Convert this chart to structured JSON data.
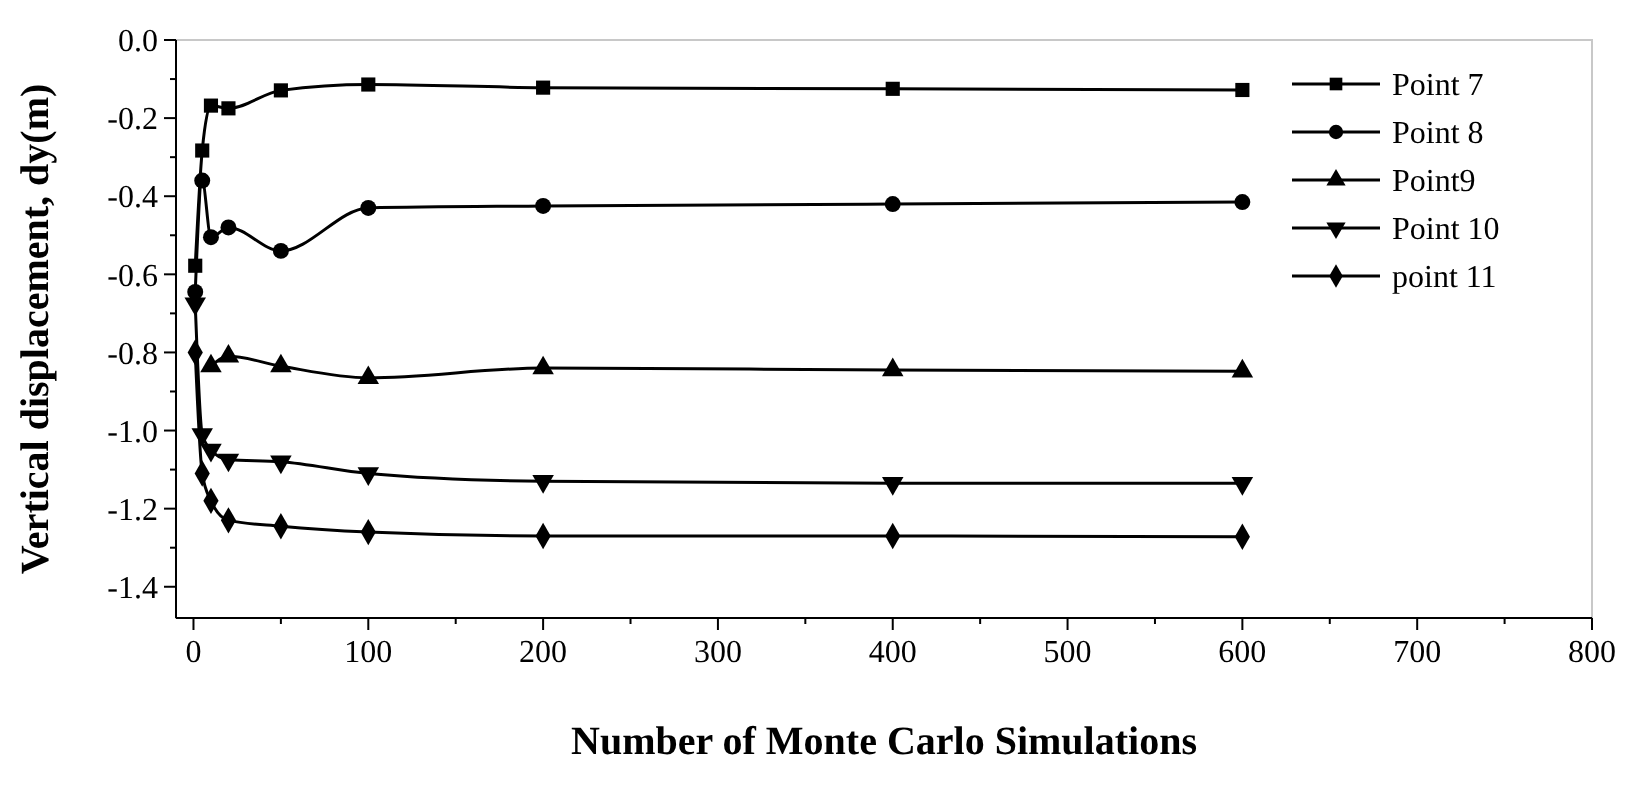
{
  "chart_data": {
    "type": "line",
    "xlabel": "Number of Monte Carlo Simulations",
    "ylabel": "Vertical displacement, dy(m)",
    "x": [
      1,
      5,
      10,
      20,
      50,
      100,
      200,
      400,
      600
    ],
    "series": [
      {
        "name": "Point 7",
        "color": "#000000",
        "marker": "square",
        "values": [
          -0.578,
          -0.283,
          -0.168,
          -0.175,
          -0.129,
          -0.114,
          -0.122,
          -0.125,
          -0.128
        ]
      },
      {
        "name": "Point 8",
        "color": "#000000",
        "marker": "circle",
        "values": [
          -0.645,
          -0.36,
          -0.505,
          -0.48,
          -0.54,
          -0.43,
          -0.425,
          -0.42,
          -0.415
        ]
      },
      {
        "name": "Point9",
        "color": "#000000",
        "marker": "triangle",
        "values": [
          null,
          null,
          -0.835,
          -0.81,
          -0.835,
          -0.865,
          -0.84,
          -0.845,
          -0.848
        ]
      },
      {
        "name": "Point 10",
        "color": "#000000",
        "marker": "triangle-down",
        "values": [
          -0.675,
          -1.01,
          -1.05,
          -1.075,
          -1.08,
          -1.11,
          -1.13,
          -1.135,
          -1.135
        ]
      },
      {
        "name": "point 11",
        "color": "#000000",
        "marker": "diamond",
        "values": [
          -0.8,
          -1.11,
          -1.18,
          -1.23,
          -1.245,
          -1.26,
          -1.27,
          -1.27,
          -1.272
        ]
      }
    ],
    "xlim": [
      -10,
      800
    ],
    "ylim": [
      -1.48,
      0
    ],
    "xticks": [
      0,
      {
        "value": 50,
        "label": null
      },
      100,
      {
        "value": 150,
        "label": null
      },
      200,
      {
        "value": 250,
        "label": null
      },
      300,
      {
        "value": 350,
        "label": null
      },
      400,
      {
        "value": 450,
        "label": null
      },
      500,
      {
        "value": 550,
        "label": null
      },
      600,
      {
        "value": 650,
        "label": null
      },
      700,
      {
        "value": 750,
        "label": null
      },
      800
    ],
    "yticks": [
      {
        "value": -1.4,
        "label": "-1.4"
      },
      {
        "value": -1.3,
        "label": null
      },
      {
        "value": -1.2,
        "label": "-1.2"
      },
      {
        "value": -1.1,
        "label": null
      },
      {
        "value": -1.0,
        "label": "-1.0"
      },
      {
        "value": -0.9,
        "label": null
      },
      {
        "value": -0.8,
        "label": "-0.8"
      },
      {
        "value": -0.7,
        "label": null
      },
      {
        "value": -0.6,
        "label": "-0.6"
      },
      {
        "value": -0.5,
        "label": null
      },
      {
        "value": -0.4,
        "label": "-0.4"
      },
      {
        "value": -0.3,
        "label": null
      },
      {
        "value": -0.2,
        "label": "-0.2"
      },
      {
        "value": -0.1,
        "label": null
      },
      {
        "value": 0,
        "label": "0.0"
      }
    ],
    "grid": false,
    "legend": "top right",
    "line_style": "solid"
  }
}
